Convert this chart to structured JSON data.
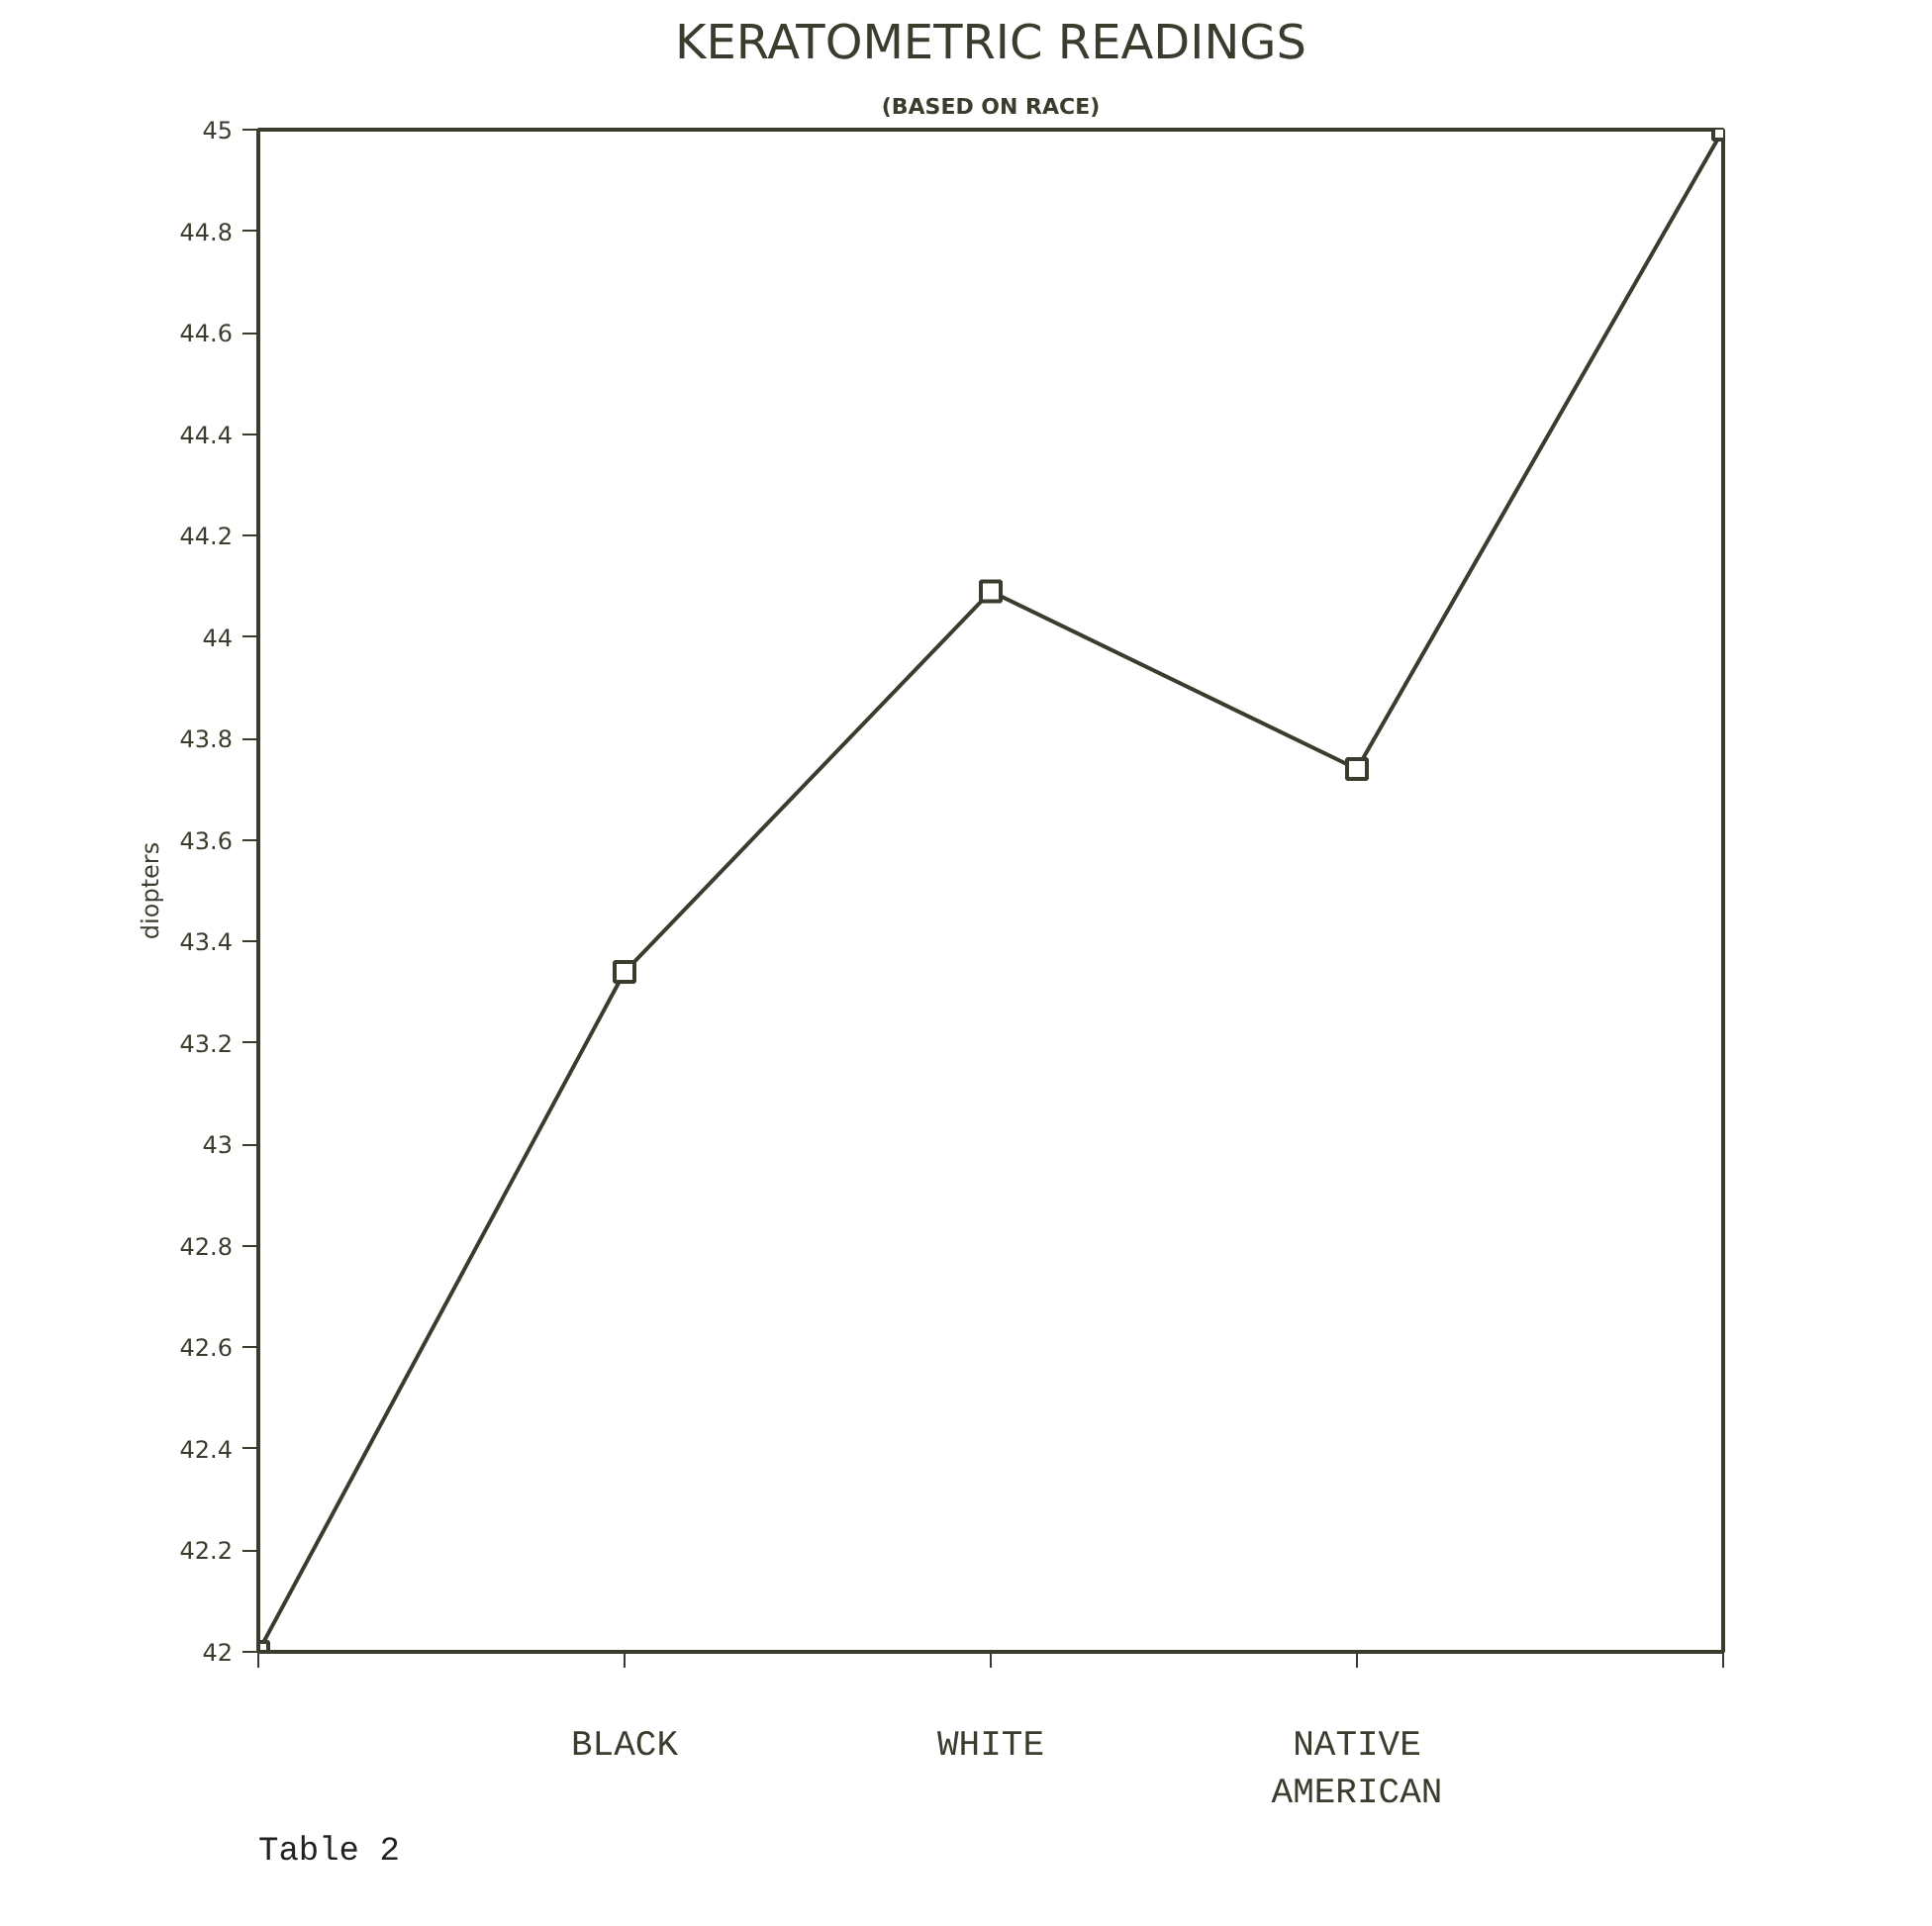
{
  "chart_data": {
    "type": "line",
    "title": "KERATOMETRIC READINGS",
    "subtitle": "(BASED ON RACE)",
    "ylabel": "diopters",
    "categories": [
      null,
      "BLACK",
      "WHITE",
      "NATIVE\nAMERICAN",
      null
    ],
    "values": [
      42,
      43.34,
      44.09,
      43.74,
      45
    ],
    "color": "#3a3d2e",
    "marker": "square",
    "line_style": "solid",
    "grid": false,
    "ylim": [
      42,
      45
    ],
    "yticks": [
      42,
      42.2,
      42.4,
      42.6,
      42.8,
      43,
      43.2,
      43.4,
      43.6,
      43.8,
      44,
      44.2,
      44.4,
      44.6,
      44.8,
      45
    ],
    "annotations": [
      "Table 2"
    ]
  }
}
